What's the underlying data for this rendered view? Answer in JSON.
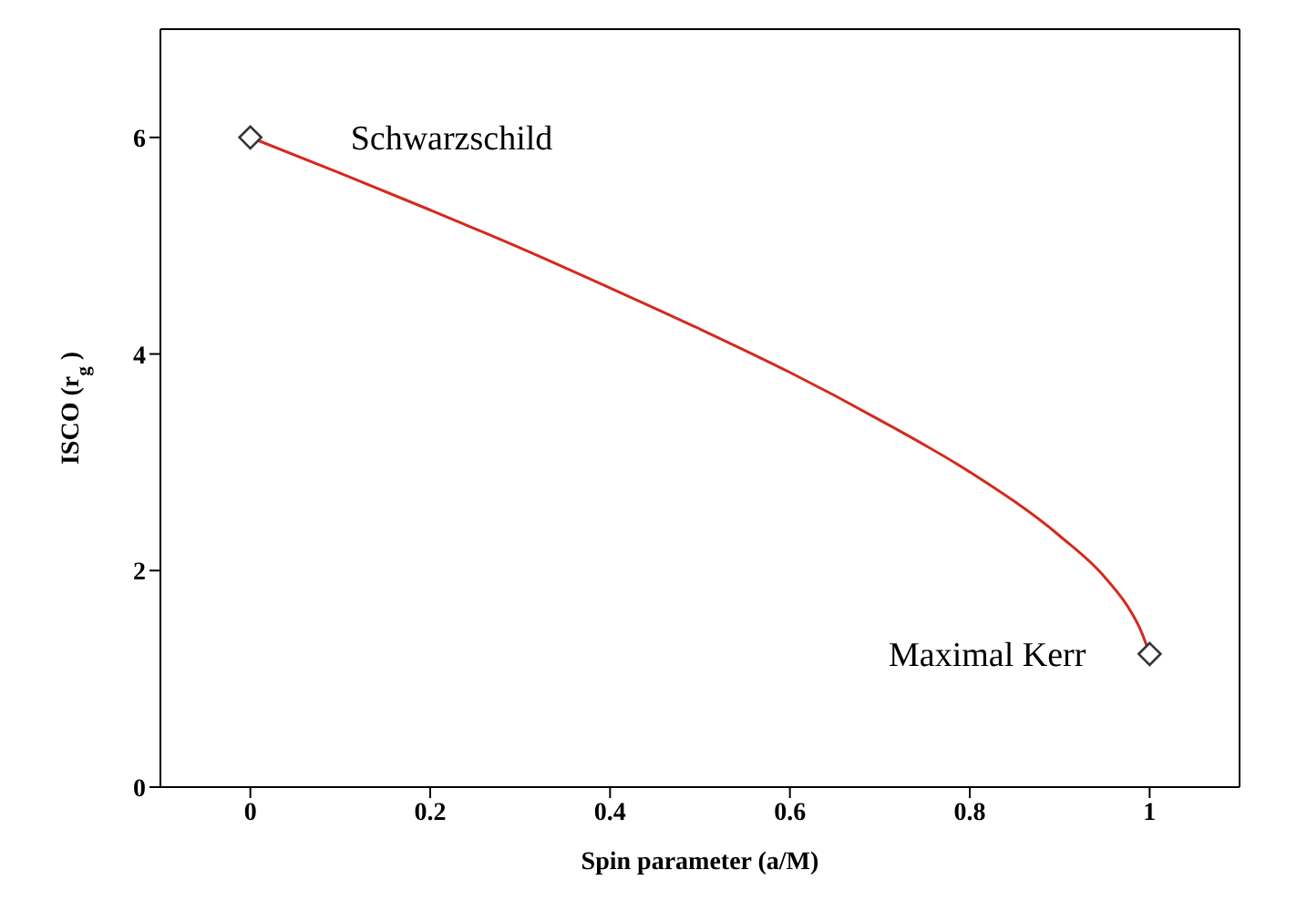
{
  "chart_data": {
    "type": "line",
    "xlabel": "Spin parameter (a/M)",
    "ylabel": "ISCO (r$_{g}$)",
    "xlim": [
      -0.1,
      1.1
    ],
    "ylim": [
      0,
      7
    ],
    "xticks": [
      0,
      0.2,
      0.4,
      0.6,
      0.8,
      1
    ],
    "yticks": [
      0,
      2,
      4,
      6
    ],
    "grid": false,
    "series": [
      {
        "color": "#d42a1e",
        "marker": "none",
        "x": [
          0,
          0.1,
          0.2,
          0.3,
          0.4,
          0.5,
          0.6,
          0.7,
          0.8,
          0.9,
          0.95,
          0.98,
          0.99,
          1
        ],
        "values": [
          6,
          5.67,
          5.33,
          4.98,
          4.61,
          4.23,
          3.83,
          3.39,
          2.91,
          2.32,
          1.94,
          1.61,
          1.45,
          1.23
        ]
      },
      {
        "type": "scatter",
        "color": "#333333",
        "marker": "diamond",
        "x": [
          0,
          1
        ],
        "values": [
          6,
          1.23
        ]
      }
    ],
    "annotations": [
      {
        "text": "Schwarzschild",
        "x": 0,
        "y": 6
      },
      {
        "text": "Maximal Kerr",
        "x": 1,
        "y": 1.23
      }
    ]
  }
}
